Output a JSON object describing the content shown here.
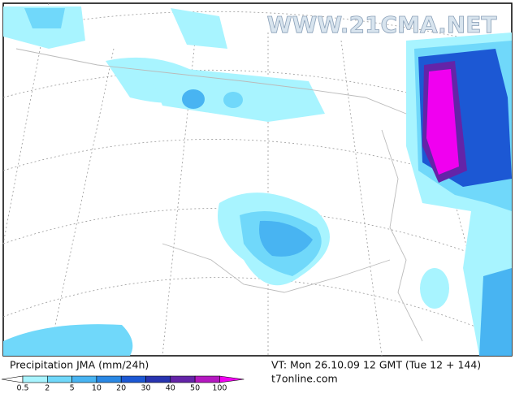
{
  "map": {
    "watermark": "WWW.21CMA.NET"
  },
  "footer": {
    "title": "Precipitation JMA (mm/24h)",
    "valid_time": "VT: Mon 26.10.09 12 GMT (Tue 12 + 144)",
    "source": "t7online.com"
  },
  "legend": {
    "labels": [
      0.5,
      2,
      5,
      10,
      20,
      30,
      40,
      50,
      100
    ],
    "colors": [
      "#ffffff",
      "#a8f4ff",
      "#70d8fa",
      "#48b4f2",
      "#2a88e4",
      "#1c58d4",
      "#2834b0",
      "#6424a8",
      "#b418c0",
      "#f000f0"
    ]
  }
}
